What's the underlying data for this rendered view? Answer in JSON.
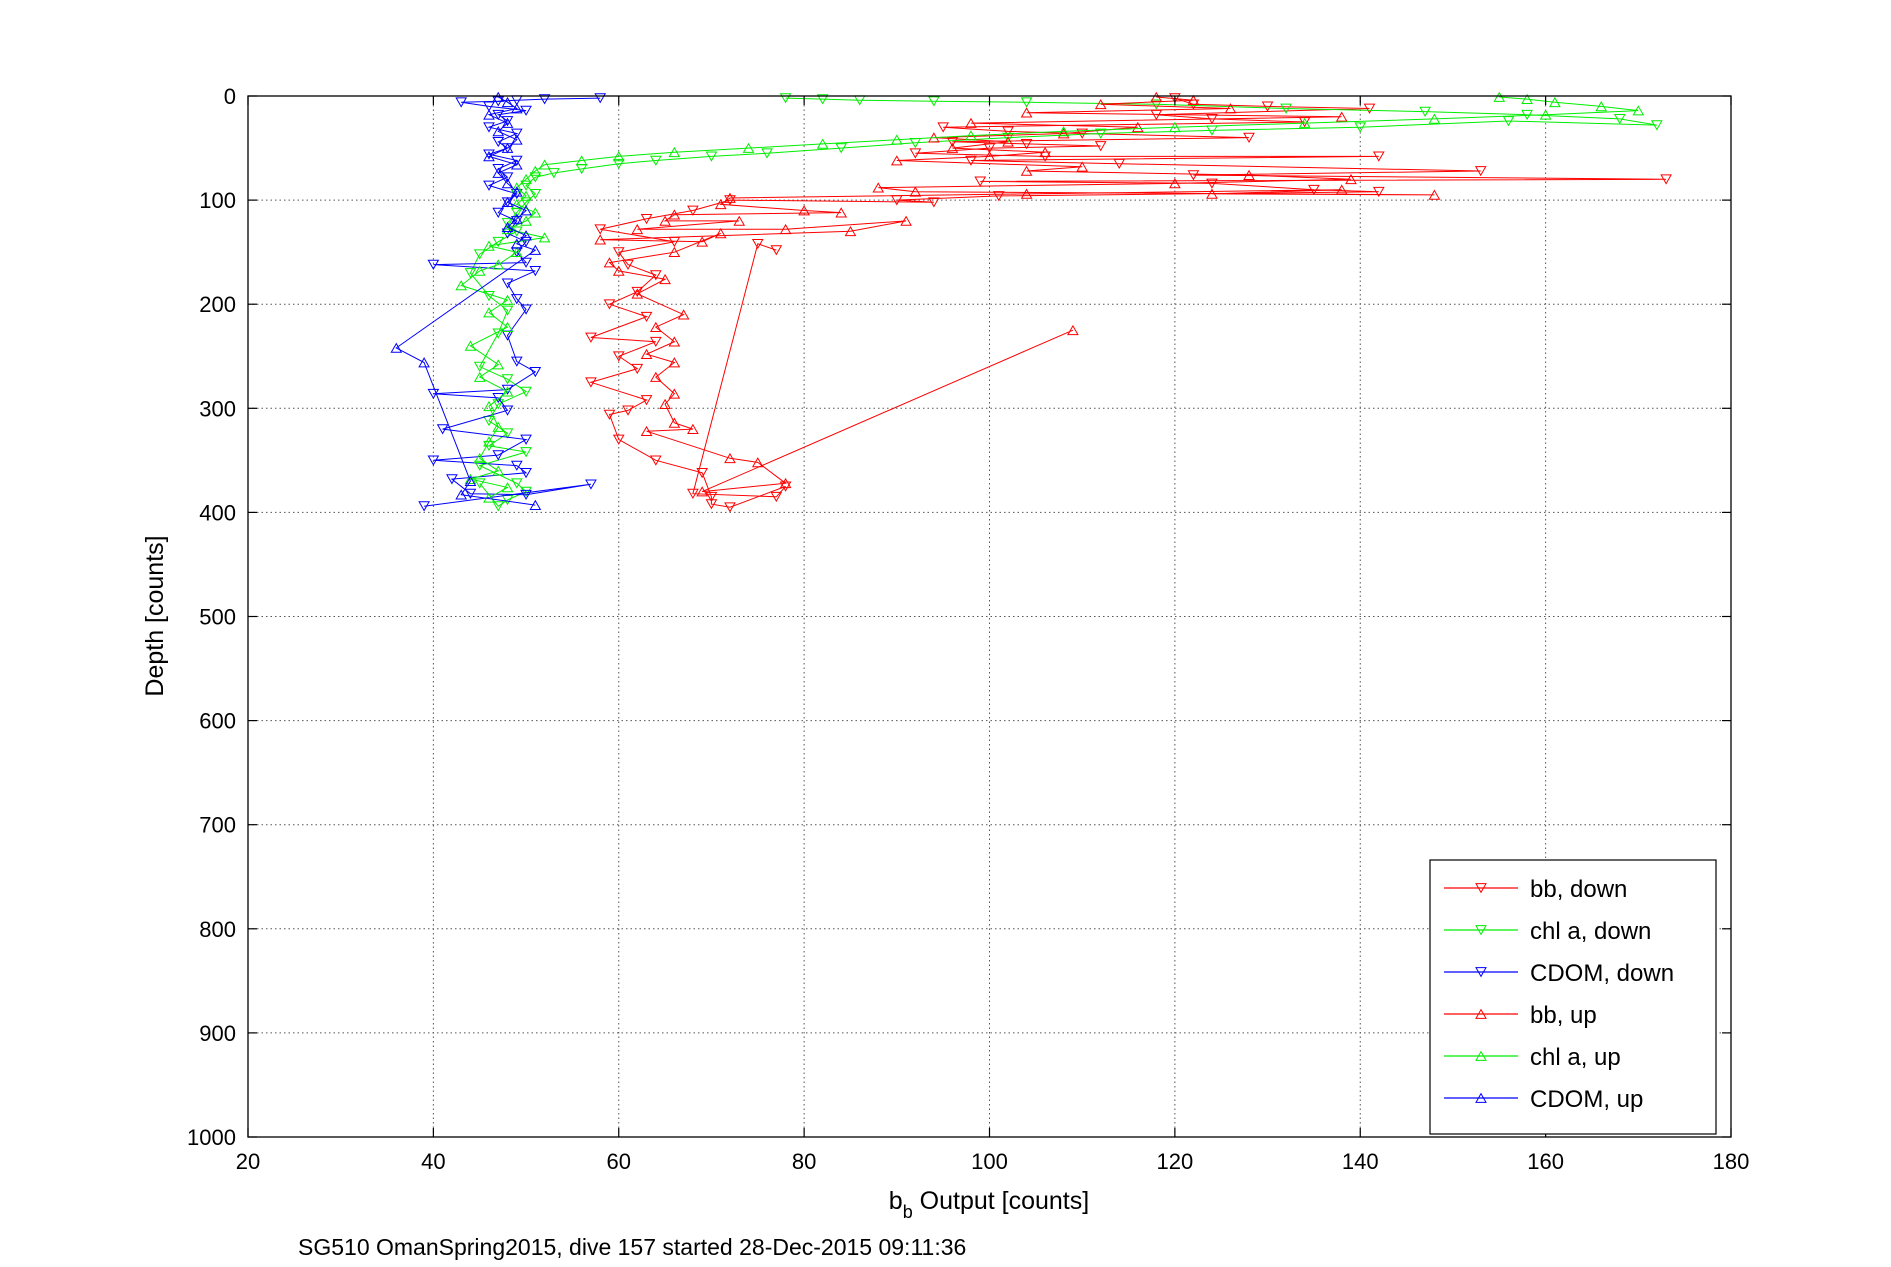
{
  "chart_data": {
    "type": "scatter",
    "title": "",
    "xlabel": {
      "main": "b",
      "subscript": "b",
      "rest": " Output [counts]"
    },
    "ylabel": "Depth [counts]",
    "caption": "SG510 OmanSpring2015, dive 157 started 28-Dec-2015 09:11:36",
    "xlim": [
      20,
      180
    ],
    "ylim": [
      0,
      1000
    ],
    "y_reversed": true,
    "grid": true,
    "grid_style": "dotted",
    "x_ticks": [
      20,
      40,
      60,
      80,
      100,
      120,
      140,
      160,
      180
    ],
    "y_ticks": [
      0,
      100,
      200,
      300,
      400,
      500,
      600,
      700,
      800,
      900,
      1000
    ],
    "legend_position": "bottom-right",
    "series": [
      {
        "name": "bb, down",
        "color": "#ff0000",
        "marker": "triangle-down",
        "connected": true,
        "points": [
          [
            120,
            2
          ],
          [
            122,
            8
          ],
          [
            130,
            10
          ],
          [
            141,
            12
          ],
          [
            118,
            18
          ],
          [
            124,
            22
          ],
          [
            134,
            25
          ],
          [
            95,
            30
          ],
          [
            102,
            34
          ],
          [
            110,
            36
          ],
          [
            128,
            40
          ],
          [
            96,
            44
          ],
          [
            104,
            46
          ],
          [
            112,
            48
          ],
          [
            100,
            50
          ],
          [
            92,
            55
          ],
          [
            106,
            58
          ],
          [
            142,
            58
          ],
          [
            98,
            62
          ],
          [
            114,
            65
          ],
          [
            153,
            72
          ],
          [
            122,
            76
          ],
          [
            173,
            80
          ],
          [
            99,
            82
          ],
          [
            124,
            84
          ],
          [
            135,
            90
          ],
          [
            142,
            92
          ],
          [
            101,
            96
          ],
          [
            90,
            100
          ],
          [
            94,
            102
          ],
          [
            72,
            100
          ],
          [
            68,
            110
          ],
          [
            63,
            118
          ],
          [
            58,
            128
          ],
          [
            66,
            140
          ],
          [
            60,
            150
          ],
          [
            61,
            162
          ],
          [
            64,
            172
          ],
          [
            62,
            188
          ],
          [
            59,
            200
          ],
          [
            63,
            212
          ],
          [
            57,
            232
          ],
          [
            64,
            236
          ],
          [
            60,
            250
          ],
          [
            62,
            262
          ],
          [
            57,
            275
          ],
          [
            63,
            292
          ],
          [
            61,
            302
          ],
          [
            59,
            306
          ],
          [
            60,
            330
          ],
          [
            64,
            350
          ],
          [
            69,
            362
          ],
          [
            70,
            385
          ],
          [
            70,
            392
          ],
          [
            72,
            395
          ],
          [
            78,
            375
          ],
          [
            77,
            385
          ],
          [
            68,
            382
          ],
          [
            75,
            142
          ],
          [
            77,
            148
          ]
        ]
      },
      {
        "name": "chl a, down",
        "color": "#00ee00",
        "marker": "triangle-down",
        "connected": true,
        "points": [
          [
            78,
            2
          ],
          [
            82,
            3
          ],
          [
            86,
            4
          ],
          [
            94,
            5
          ],
          [
            104,
            6
          ],
          [
            118,
            8
          ],
          [
            132,
            12
          ],
          [
            147,
            15
          ],
          [
            158,
            18
          ],
          [
            168,
            22
          ],
          [
            172,
            28
          ],
          [
            156,
            24
          ],
          [
            140,
            30
          ],
          [
            124,
            33
          ],
          [
            112,
            36
          ],
          [
            102,
            40
          ],
          [
            92,
            45
          ],
          [
            84,
            50
          ],
          [
            76,
            55
          ],
          [
            70,
            58
          ],
          [
            64,
            62
          ],
          [
            60,
            65
          ],
          [
            56,
            70
          ],
          [
            53,
            74
          ],
          [
            51,
            78
          ],
          [
            50,
            86
          ],
          [
            51,
            94
          ],
          [
            50,
            102
          ],
          [
            49,
            112
          ],
          [
            48,
            122
          ],
          [
            49,
            130
          ],
          [
            47,
            140
          ],
          [
            45,
            152
          ],
          [
            44,
            170
          ],
          [
            46,
            192
          ],
          [
            48,
            206
          ],
          [
            47,
            228
          ],
          [
            45,
            260
          ],
          [
            48,
            272
          ],
          [
            50,
            284
          ],
          [
            47,
            296
          ],
          [
            46,
            312
          ],
          [
            48,
            324
          ],
          [
            46,
            336
          ],
          [
            50,
            342
          ],
          [
            45,
            355
          ],
          [
            49,
            372
          ],
          [
            50,
            380
          ],
          [
            48,
            388
          ],
          [
            47,
            394
          ],
          [
            45,
            372
          ]
        ]
      },
      {
        "name": "CDOM, down",
        "color": "#0000ff",
        "marker": "triangle-down",
        "connected": true,
        "points": [
          [
            58,
            2
          ],
          [
            52,
            3
          ],
          [
            49,
            4
          ],
          [
            47,
            5
          ],
          [
            43,
            6
          ],
          [
            46,
            10
          ],
          [
            50,
            14
          ],
          [
            47,
            18
          ],
          [
            48,
            24
          ],
          [
            46,
            30
          ],
          [
            49,
            36
          ],
          [
            47,
            44
          ],
          [
            48,
            50
          ],
          [
            46,
            56
          ],
          [
            49,
            62
          ],
          [
            47,
            70
          ],
          [
            48,
            78
          ],
          [
            46,
            86
          ],
          [
            49,
            94
          ],
          [
            48,
            102
          ],
          [
            47,
            112
          ],
          [
            49,
            120
          ],
          [
            48,
            132
          ],
          [
            50,
            140
          ],
          [
            49,
            150
          ],
          [
            50,
            160
          ],
          [
            40,
            162
          ],
          [
            51,
            168
          ],
          [
            48,
            180
          ],
          [
            49,
            195
          ],
          [
            50,
            205
          ],
          [
            48,
            230
          ],
          [
            49,
            255
          ],
          [
            51,
            265
          ],
          [
            48,
            282
          ],
          [
            40,
            286
          ],
          [
            47,
            290
          ],
          [
            48,
            302
          ],
          [
            41,
            320
          ],
          [
            50,
            330
          ],
          [
            47,
            345
          ],
          [
            40,
            350
          ],
          [
            49,
            355
          ],
          [
            50,
            362
          ],
          [
            42,
            368
          ],
          [
            44,
            382
          ],
          [
            50,
            383
          ],
          [
            57,
            373
          ],
          [
            39,
            394
          ]
        ]
      },
      {
        "name": "bb, up",
        "color": "#ff0000",
        "marker": "triangle-up",
        "connected": true,
        "points": [
          [
            118,
            1
          ],
          [
            122,
            4
          ],
          [
            112,
            8
          ],
          [
            126,
            12
          ],
          [
            104,
            16
          ],
          [
            138,
            20
          ],
          [
            98,
            26
          ],
          [
            116,
            30
          ],
          [
            108,
            36
          ],
          [
            94,
            40
          ],
          [
            102,
            44
          ],
          [
            96,
            50
          ],
          [
            106,
            54
          ],
          [
            100,
            58
          ],
          [
            90,
            62
          ],
          [
            110,
            68
          ],
          [
            104,
            72
          ],
          [
            128,
            76
          ],
          [
            139,
            80
          ],
          [
            120,
            84
          ],
          [
            88,
            88
          ],
          [
            92,
            92
          ],
          [
            148,
            95
          ],
          [
            124,
            94
          ],
          [
            138,
            90
          ],
          [
            104,
            94
          ],
          [
            72,
            98
          ],
          [
            71,
            104
          ],
          [
            80,
            110
          ],
          [
            84,
            112
          ],
          [
            66,
            114
          ],
          [
            65,
            120
          ],
          [
            73,
            120
          ],
          [
            62,
            128
          ],
          [
            78,
            128
          ],
          [
            91,
            120
          ],
          [
            85,
            130
          ],
          [
            58,
            138
          ],
          [
            69,
            140
          ],
          [
            71,
            132
          ],
          [
            66,
            150
          ],
          [
            59,
            160
          ],
          [
            60,
            168
          ],
          [
            65,
            176
          ],
          [
            62,
            190
          ],
          [
            67,
            210
          ],
          [
            64,
            222
          ],
          [
            66,
            236
          ],
          [
            63,
            248
          ],
          [
            66,
            256
          ],
          [
            64,
            270
          ],
          [
            66,
            286
          ],
          [
            65,
            296
          ],
          [
            66,
            314
          ],
          [
            68,
            320
          ],
          [
            63,
            322
          ],
          [
            72,
            348
          ],
          [
            75,
            352
          ],
          [
            78,
            372
          ],
          [
            69,
            380
          ],
          [
            109,
            225
          ]
        ]
      },
      {
        "name": "chl a, up",
        "color": "#00ee00",
        "marker": "triangle-up",
        "connected": true,
        "points": [
          [
            155,
            1
          ],
          [
            158,
            3
          ],
          [
            161,
            6
          ],
          [
            166,
            10
          ],
          [
            170,
            14
          ],
          [
            160,
            18
          ],
          [
            148,
            22
          ],
          [
            134,
            26
          ],
          [
            120,
            30
          ],
          [
            108,
            34
          ],
          [
            98,
            38
          ],
          [
            90,
            42
          ],
          [
            82,
            46
          ],
          [
            74,
            50
          ],
          [
            66,
            54
          ],
          [
            60,
            58
          ],
          [
            56,
            62
          ],
          [
            52,
            66
          ],
          [
            51,
            72
          ],
          [
            50,
            80
          ],
          [
            49,
            88
          ],
          [
            50,
            96
          ],
          [
            49,
            104
          ],
          [
            51,
            112
          ],
          [
            50,
            120
          ],
          [
            48,
            128
          ],
          [
            52,
            136
          ],
          [
            46,
            144
          ],
          [
            49,
            150
          ],
          [
            47,
            162
          ],
          [
            45,
            168
          ],
          [
            43,
            182
          ],
          [
            48,
            196
          ],
          [
            46,
            208
          ],
          [
            48,
            222
          ],
          [
            44,
            240
          ],
          [
            47,
            258
          ],
          [
            45,
            270
          ],
          [
            48,
            284
          ],
          [
            46,
            298
          ],
          [
            47,
            318
          ],
          [
            46,
            332
          ],
          [
            45,
            348
          ],
          [
            47,
            360
          ],
          [
            44,
            368
          ],
          [
            48,
            376
          ],
          [
            46,
            386
          ]
        ]
      },
      {
        "name": "CDOM, up",
        "color": "#0000ff",
        "marker": "triangle-up",
        "connected": true,
        "points": [
          [
            47,
            1
          ],
          [
            48,
            6
          ],
          [
            49,
            12
          ],
          [
            46,
            18
          ],
          [
            48,
            26
          ],
          [
            47,
            34
          ],
          [
            49,
            42
          ],
          [
            48,
            50
          ],
          [
            46,
            58
          ],
          [
            49,
            66
          ],
          [
            47,
            74
          ],
          [
            48,
            84
          ],
          [
            49,
            92
          ],
          [
            48,
            102
          ],
          [
            50,
            110
          ],
          [
            49,
            118
          ],
          [
            48,
            126
          ],
          [
            50,
            134
          ],
          [
            49,
            142
          ],
          [
            51,
            148
          ],
          [
            36,
            242
          ],
          [
            39,
            256
          ],
          [
            44,
            370
          ],
          [
            43,
            383
          ],
          [
            51,
            393
          ]
        ]
      }
    ]
  }
}
